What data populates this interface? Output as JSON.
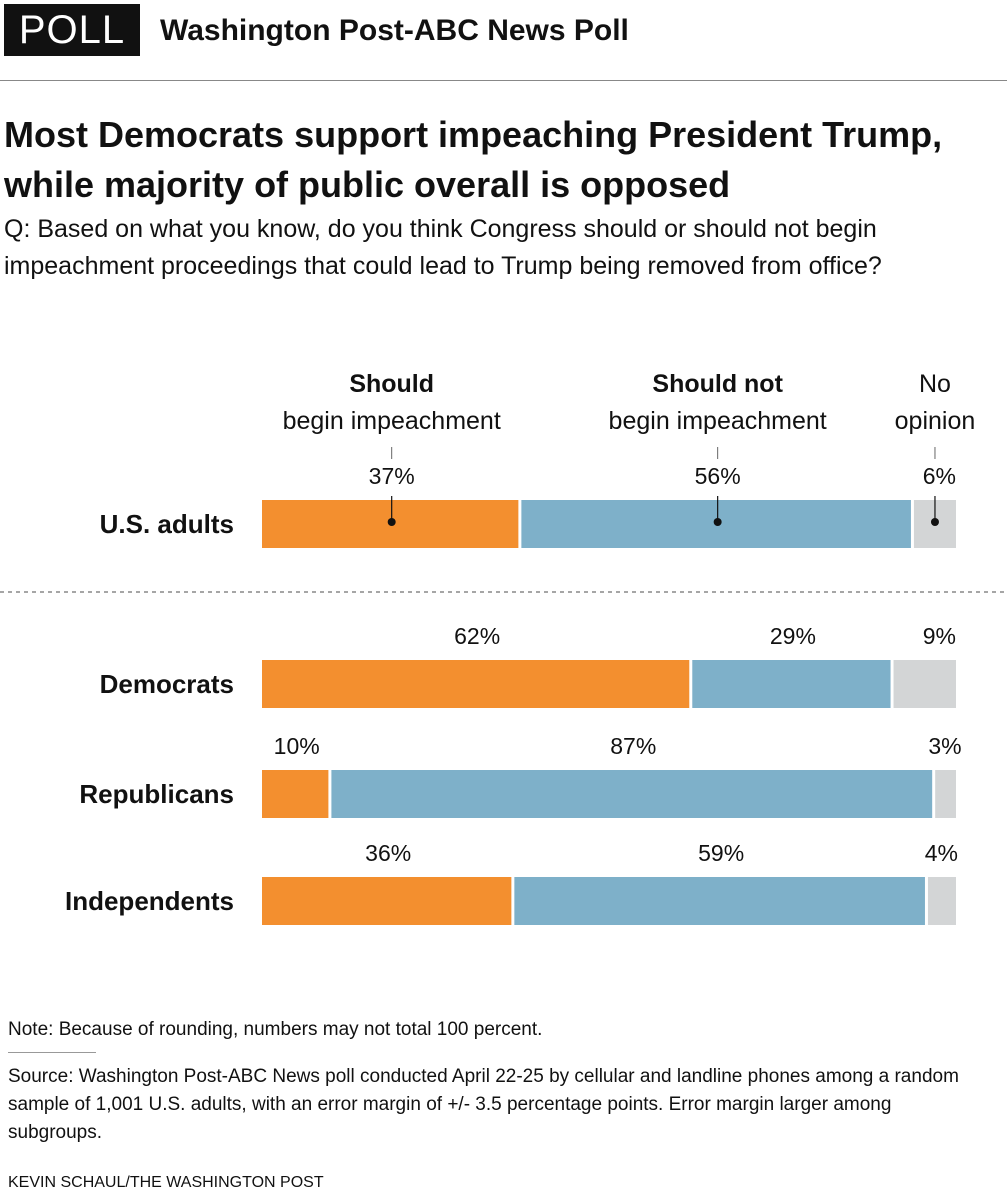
{
  "header": {
    "badge": "POLL",
    "poll_name": "Washington Post-ABC News Poll"
  },
  "headline": "Most Democrats support impeaching President Trump, while majority of public overall is opposed",
  "question": "Q: Based on what you know, do you think Congress should or should not begin impeachment proceedings that could lead to Trump being removed from office?",
  "colors": {
    "should": "#F38F2F",
    "should_not": "#7EB0C9",
    "no_opinion": "#D3D5D6"
  },
  "chart_data": {
    "type": "bar",
    "orientation": "horizontal-stacked-100",
    "legend": [
      {
        "bold": "Should",
        "text": "begin impeachment"
      },
      {
        "bold": "Should not",
        "text": "begin impeachment"
      },
      {
        "bold": "",
        "text": "No opinion",
        "lines": [
          "No",
          "opinion"
        ]
      }
    ],
    "series": [
      {
        "name": "Should begin impeachment"
      },
      {
        "name": "Should not begin impeachment"
      },
      {
        "name": "No opinion"
      }
    ],
    "rows": [
      {
        "label": "U.S. adults",
        "values": [
          37,
          56,
          6
        ],
        "labels": [
          "37%",
          "56%",
          "6%"
        ]
      },
      {
        "label": "Democrats",
        "values": [
          62,
          29,
          9
        ],
        "labels": [
          "62%",
          "29%",
          "9%"
        ]
      },
      {
        "label": "Republicans",
        "values": [
          10,
          87,
          3
        ],
        "labels": [
          "10%",
          "87%",
          "3%"
        ]
      },
      {
        "label": "Independents",
        "values": [
          36,
          59,
          4
        ],
        "labels": [
          "36%",
          "59%",
          "4%"
        ]
      }
    ]
  },
  "note": "Note: Because of rounding, numbers may not total 100 percent.",
  "source": "Source: Washington Post-ABC News poll conducted April 22-25 by cellular and landline phones among a random sample of 1,001 U.S. adults, with an error margin of +/- 3.5 percentage points. Error margin larger among subgroups.",
  "credit": "KEVIN SCHAUL/THE WASHINGTON POST"
}
